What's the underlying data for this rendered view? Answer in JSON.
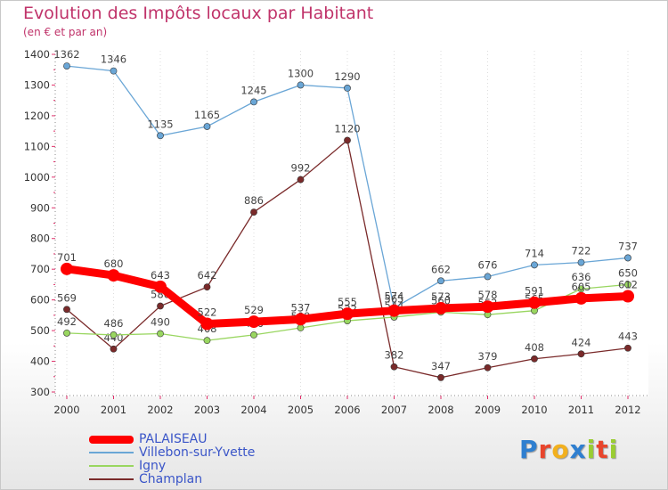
{
  "chart_data": {
    "type": "line",
    "title": "Evolution des Impôts locaux par Habitant",
    "subtitle": "(en € et par an)",
    "xlabel": "",
    "ylabel": "",
    "ylim": [
      300,
      1400
    ],
    "yticks": [
      300,
      400,
      500,
      600,
      700,
      800,
      900,
      1000,
      1100,
      1200,
      1300,
      1400
    ],
    "categories": [
      "2000",
      "2001",
      "2002",
      "2003",
      "2004",
      "2005",
      "2006",
      "2007",
      "2008",
      "2009",
      "2010",
      "2011",
      "2012"
    ],
    "series": [
      {
        "name": "PALAISEAU",
        "color": "#ff0000",
        "values": [
          701,
          680,
          643,
          522,
          529,
          537,
          555,
          565,
          573,
          578,
          591,
          605,
          612
        ]
      },
      {
        "name": "Villebon-sur-Yvette",
        "color": "#6aa6d6",
        "values": [
          1362,
          1346,
          1135,
          1165,
          1245,
          1300,
          1290,
          574,
          662,
          676,
          714,
          722,
          737
        ]
      },
      {
        "name": "Igny",
        "color": "#99d660",
        "values": [
          492,
          486,
          490,
          468,
          486,
          509,
          532,
          544,
          560,
          552,
          565,
          636,
          650
        ]
      },
      {
        "name": "Champlan",
        "color": "#7a2a2a",
        "values": [
          569,
          440,
          580,
          642,
          886,
          992,
          1120,
          382,
          347,
          379,
          408,
          424,
          443
        ]
      }
    ]
  },
  "legend": {
    "items": [
      "PALAISEAU",
      "Villebon-sur-Yvette",
      "Igny",
      "Champlan"
    ]
  },
  "logo": {
    "letters": [
      "P",
      "r",
      "o",
      "x",
      "i",
      "t",
      "i"
    ],
    "colors": [
      "#2f7fd0",
      "#e8452c",
      "#f2b01e",
      "#2f7fd0",
      "#9acd32",
      "#e8452c",
      "#9acd32"
    ]
  }
}
